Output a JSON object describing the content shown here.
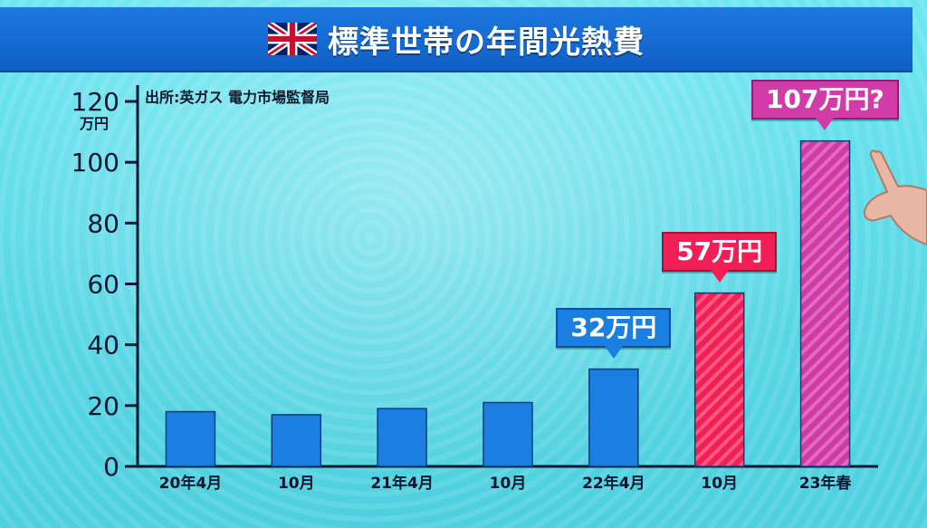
{
  "title": "標準世帯の年間光熱費",
  "source": "出所:英ガス 電力市場監督局",
  "icons": {
    "flag": "uk-flag-icon",
    "hand": "pointing-hand"
  },
  "colors": {
    "bar": "#1a7fe0",
    "highlight_red": "#f21e56",
    "highlight_pink": "#cf3aa6",
    "title_bg": "#1565d0"
  },
  "callouts": [
    {
      "label": "32万円",
      "index": 4,
      "style": "blue"
    },
    {
      "label": "57万円",
      "index": 5,
      "style": "red"
    },
    {
      "label": "107万円?",
      "index": 6,
      "style": "pink"
    }
  ],
  "chart_data": {
    "type": "bar",
    "categories": [
      "20年4月",
      "10月",
      "21年4月",
      "10月",
      "22年4月",
      "10月",
      "23年春"
    ],
    "values": [
      18,
      17,
      19,
      21,
      32,
      57,
      107
    ],
    "ylim": [
      0,
      120
    ],
    "yticks": [
      0,
      20,
      40,
      60,
      80,
      100,
      120
    ],
    "yunit": "万円",
    "bar_colors": [
      "#1a7fe0",
      "#1a7fe0",
      "#1a7fe0",
      "#1a7fe0",
      "#1a7fe0",
      "#f21e56",
      "#cf3aa6"
    ],
    "grid": false
  }
}
